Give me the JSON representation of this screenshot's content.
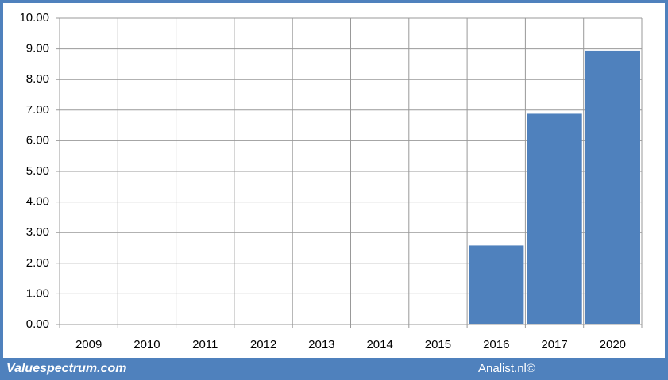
{
  "chart_data": {
    "type": "bar",
    "categories": [
      "2009",
      "2010",
      "2011",
      "2012",
      "2013",
      "2014",
      "2015",
      "2016",
      "2017",
      "2020"
    ],
    "values": [
      null,
      null,
      null,
      null,
      null,
      null,
      null,
      2.58,
      6.88,
      8.94
    ],
    "color": "#4f81bd",
    "ylim": [
      0,
      10
    ],
    "yticks": [
      {
        "value": 0,
        "label": "0.00"
      },
      {
        "value": 1,
        "label": "1.00"
      },
      {
        "value": 2,
        "label": "2.00"
      },
      {
        "value": 3,
        "label": "3.00"
      },
      {
        "value": 4,
        "label": "4.00"
      },
      {
        "value": 5,
        "label": "5.00"
      },
      {
        "value": 6,
        "label": "6.00"
      },
      {
        "value": 7,
        "label": "7.00"
      },
      {
        "value": 8,
        "label": "8.00"
      },
      {
        "value": 9,
        "label": "9.00"
      },
      {
        "value": 10,
        "label": "10.00"
      }
    ],
    "grid": true,
    "footer_left": "Valuespectrum.com",
    "footer_right": "Analist.nl©"
  }
}
